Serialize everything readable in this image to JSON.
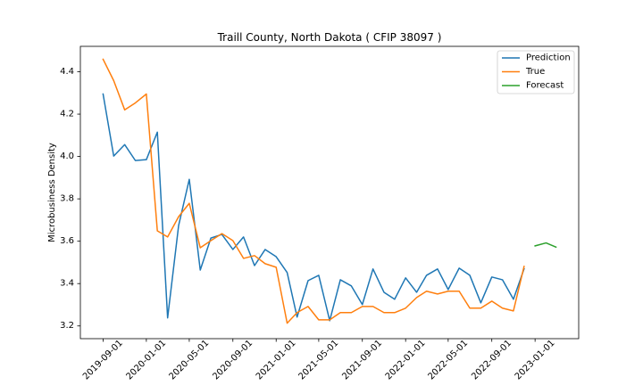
{
  "chart_data": {
    "type": "line",
    "title": "Traill County, North Dakota ( CFIP 38097 )",
    "ylabel": "Microbusiness Density",
    "x": [
      "2019-09-01",
      "2019-10-01",
      "2019-11-01",
      "2019-12-01",
      "2020-01-01",
      "2020-02-01",
      "2020-03-01",
      "2020-04-01",
      "2020-05-01",
      "2020-06-01",
      "2020-07-01",
      "2020-08-01",
      "2020-09-01",
      "2020-10-01",
      "2020-11-01",
      "2020-12-01",
      "2021-01-01",
      "2021-02-01",
      "2021-03-01",
      "2021-04-01",
      "2021-05-01",
      "2021-06-01",
      "2021-07-01",
      "2021-08-01",
      "2021-09-01",
      "2021-10-01",
      "2021-11-01",
      "2021-12-01",
      "2022-01-01",
      "2022-02-01",
      "2022-03-01",
      "2022-04-01",
      "2022-05-01",
      "2022-06-01",
      "2022-07-01",
      "2022-08-01",
      "2022-09-01",
      "2022-10-01",
      "2022-11-01",
      "2022-12-01"
    ],
    "series": [
      {
        "name": "Prediction",
        "color": "#1f77b4",
        "values": [
          4.295,
          4.002,
          4.056,
          3.981,
          3.985,
          4.115,
          3.238,
          3.674,
          3.892,
          3.464,
          3.615,
          3.632,
          3.561,
          3.62,
          3.485,
          3.561,
          3.527,
          3.452,
          3.242,
          3.414,
          3.439,
          3.225,
          3.418,
          3.389,
          3.301,
          3.469,
          3.359,
          3.326,
          3.427,
          3.359,
          3.439,
          3.469,
          3.372,
          3.473,
          3.439,
          3.309,
          3.431,
          3.418,
          3.326,
          3.47
        ]
      },
      {
        "name": "True",
        "color": "#ff7f0e",
        "values": [
          4.459,
          4.358,
          4.22,
          4.253,
          4.295,
          3.649,
          3.62,
          3.716,
          3.779,
          3.569,
          3.603,
          3.636,
          3.603,
          3.519,
          3.532,
          3.494,
          3.477,
          3.213,
          3.263,
          3.292,
          3.229,
          3.229,
          3.263,
          3.263,
          3.292,
          3.292,
          3.263,
          3.263,
          3.284,
          3.334,
          3.364,
          3.351,
          3.364,
          3.364,
          3.284,
          3.284,
          3.317,
          3.284,
          3.271,
          3.481
        ]
      },
      {
        "name": "Forecast",
        "color": "#2ca02c",
        "x": [
          "2023-01-01",
          "2023-02-01",
          "2023-03-01"
        ],
        "values": [
          3.578,
          3.592,
          3.572
        ]
      }
    ],
    "xlim": [
      "2019-06-29",
      "2023-05-04"
    ],
    "ylim": [
      3.14,
      4.52
    ],
    "xticks": [
      "2019-09-01",
      "2020-01-01",
      "2020-05-01",
      "2020-09-01",
      "2021-01-01",
      "2021-05-01",
      "2021-09-01",
      "2022-01-01",
      "2022-05-01",
      "2022-09-01",
      "2023-01-01"
    ],
    "yticks": [
      "3.2",
      "3.4",
      "3.6",
      "3.8",
      "4.0",
      "4.2",
      "4.4"
    ],
    "grid": false,
    "legend": "top-right"
  }
}
